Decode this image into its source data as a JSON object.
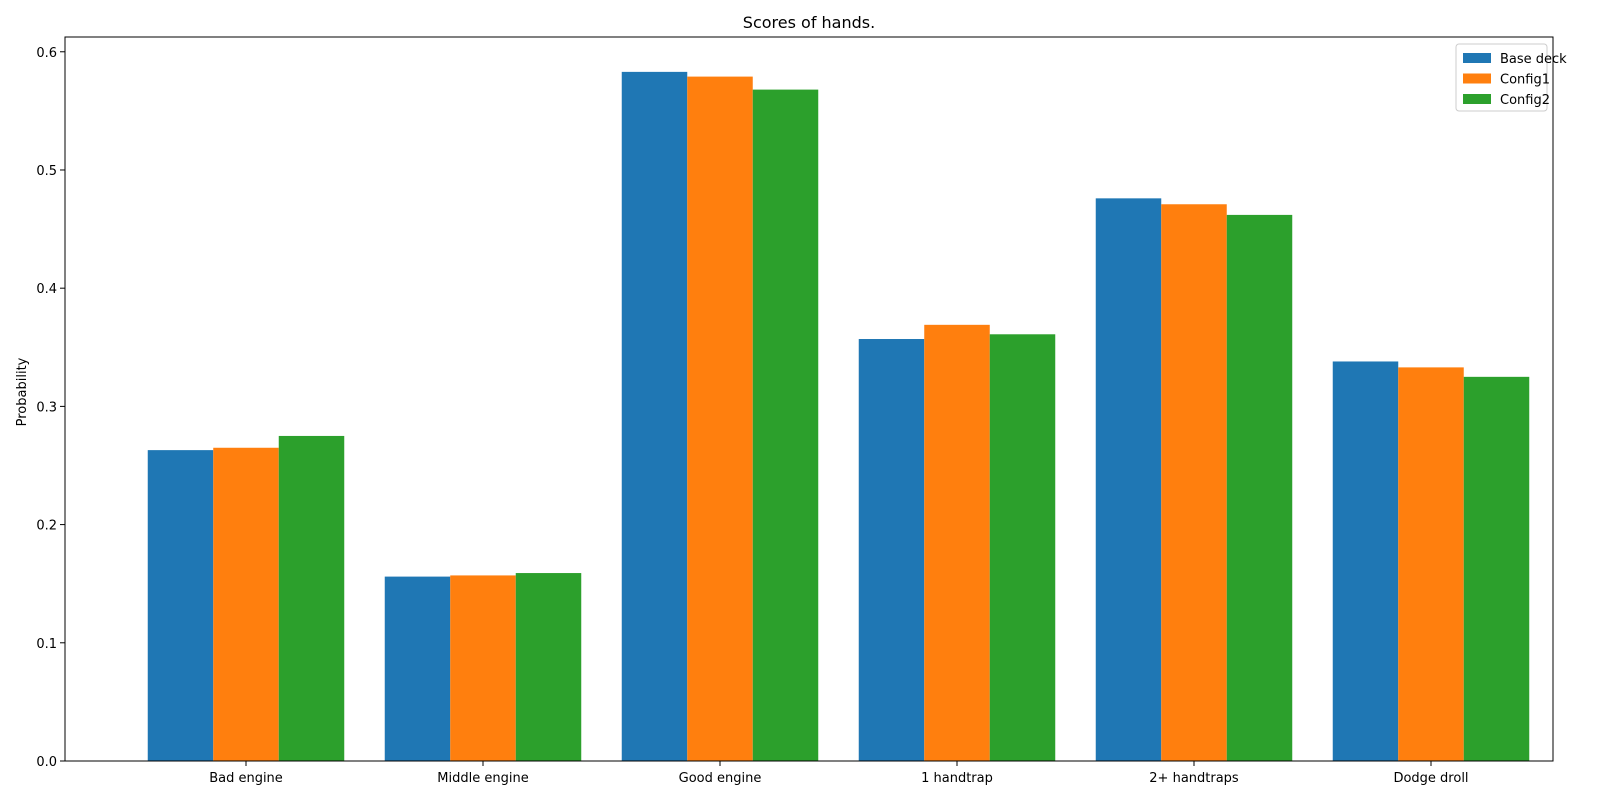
{
  "chart_data": {
    "type": "bar",
    "title": "Scores of hands.",
    "xlabel": "",
    "ylabel": "Probability",
    "ylim": [
      0,
      0.6125
    ],
    "yticks": [
      "0.0",
      "0.1",
      "0.2",
      "0.3",
      "0.4",
      "0.5",
      "0.6"
    ],
    "grid": false,
    "legend_position": "top-right",
    "categories": [
      "Bad engine",
      "Middle engine",
      "Good engine",
      "1 handtrap",
      "2+ handtraps",
      "Dodge droll"
    ],
    "series": [
      {
        "name": "Base deck",
        "color": "#1f77b4",
        "values": [
          0.263,
          0.156,
          0.583,
          0.357,
          0.476,
          0.338
        ]
      },
      {
        "name": "Config1",
        "color": "#ff7f0e",
        "values": [
          0.265,
          0.157,
          0.579,
          0.369,
          0.471,
          0.333
        ]
      },
      {
        "name": "Config2",
        "color": "#2ca02c",
        "values": [
          0.275,
          0.159,
          0.568,
          0.361,
          0.462,
          0.325
        ]
      }
    ]
  }
}
